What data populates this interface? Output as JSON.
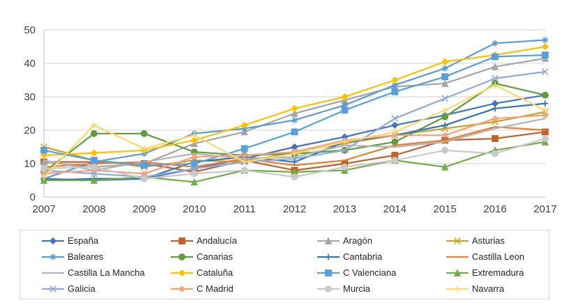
{
  "chart_data": {
    "type": "line",
    "title": "",
    "xlabel": "",
    "ylabel": "",
    "x": [
      2007,
      2008,
      2009,
      2010,
      2011,
      2012,
      2013,
      2014,
      2015,
      2016,
      2017
    ],
    "ylim": [
      0,
      50
    ],
    "ytick_interval": 10,
    "yticks": [
      0,
      10,
      20,
      30,
      40,
      50
    ],
    "grid": "horizontal",
    "gridline_color": "#d3d3d3",
    "axis_line_color": "#bfbfbf",
    "tick_label_color": "#404040",
    "legend_position": "bottom",
    "series": [
      {
        "name": "España",
        "color": "#4472c4",
        "marker": "diamond",
        "values": [
          5.5,
          5,
          5.5,
          8.5,
          11.5,
          15,
          18,
          21.5,
          24.5,
          28,
          30.5
        ]
      },
      {
        "name": "Andalucía",
        "color": "#c0622c",
        "marker": "square",
        "values": [
          10.5,
          10.5,
          10,
          7.5,
          11,
          8,
          10,
          12.5,
          17,
          17.5,
          19.5
        ]
      },
      {
        "name": "Aragón",
        "color": "#a5a5a5",
        "marker": "triangle",
        "values": [
          10.5,
          9,
          10,
          16,
          19.5,
          25,
          29,
          33,
          34,
          39,
          41.5
        ]
      },
      {
        "name": "Asturias",
        "color": "#cfa128",
        "marker": "x",
        "values": [
          15,
          11,
          9,
          11,
          10.5,
          13.5,
          16,
          18.5,
          20.5,
          22.5,
          25.5
        ]
      },
      {
        "name": "Baleares",
        "color": "#5b9bd5",
        "marker": "asterisk",
        "values": [
          5.5,
          10.5,
          13,
          19,
          20.5,
          23,
          27.5,
          33.5,
          38.5,
          46,
          47
        ]
      },
      {
        "name": "Canarias",
        "color": "#5f9c3f",
        "marker": "circle",
        "values": [
          7.5,
          19,
          19,
          13.5,
          12.5,
          13,
          14,
          16.5,
          24,
          34,
          30.5
        ]
      },
      {
        "name": "Cantabria",
        "color": "#2e75b6",
        "marker": "plus",
        "values": [
          5,
          5.5,
          5.5,
          10.5,
          12,
          10.5,
          16.5,
          18.5,
          21.5,
          26.5,
          28
        ]
      },
      {
        "name": "Castilla Leon",
        "color": "#ed7d31",
        "marker": "none",
        "values": [
          9,
          10,
          10.5,
          9,
          11.5,
          9.5,
          11,
          15.5,
          17,
          21,
          20
        ]
      },
      {
        "name": "Castilla La Mancha",
        "color": "#b3b3b3",
        "marker": "none",
        "values": [
          11,
          8,
          10.5,
          13,
          11.5,
          12,
          15.5,
          15,
          16.5,
          20.5,
          23.5
        ]
      },
      {
        "name": "Cataluña",
        "color": "#ffc000",
        "marker": "diamond",
        "values": [
          12.5,
          13.2,
          14,
          17,
          21.5,
          26.5,
          30,
          35,
          40.5,
          42.5,
          45
        ]
      },
      {
        "name": "C Valenciana",
        "color": "#55a0dd",
        "marker": "square",
        "values": [
          14,
          11,
          9.5,
          10,
          14.5,
          19.5,
          26,
          31.5,
          36,
          42,
          42.5
        ]
      },
      {
        "name": "Extremadura",
        "color": "#70ad47",
        "marker": "triangle",
        "values": [
          5,
          5,
          6,
          4.5,
          8,
          7.5,
          8,
          11,
          9,
          14,
          16.5
        ]
      },
      {
        "name": "Galicia",
        "color": "#8faadc",
        "marker": "x",
        "values": [
          8,
          7,
          6,
          8.5,
          10.5,
          11.5,
          14,
          23.5,
          29.5,
          35.5,
          37.5
        ]
      },
      {
        "name": "C Madrid",
        "color": "#f4a17c",
        "marker": "asterisk",
        "values": [
          7,
          8,
          7,
          12,
          12.5,
          13.5,
          17,
          18.5,
          18.5,
          23.5,
          24.5
        ]
      },
      {
        "name": "Murcia",
        "color": "#c9c9c9",
        "marker": "circle",
        "values": [
          8.5,
          9,
          5.5,
          7,
          8,
          6,
          9,
          11,
          14,
          13,
          17.5
        ]
      },
      {
        "name": "Navarra",
        "color": "#ffd966",
        "marker": "plus",
        "values": [
          6,
          21.5,
          14.5,
          18.5,
          10.5,
          13,
          16.5,
          19.5,
          26,
          33.5,
          26
        ]
      }
    ]
  }
}
